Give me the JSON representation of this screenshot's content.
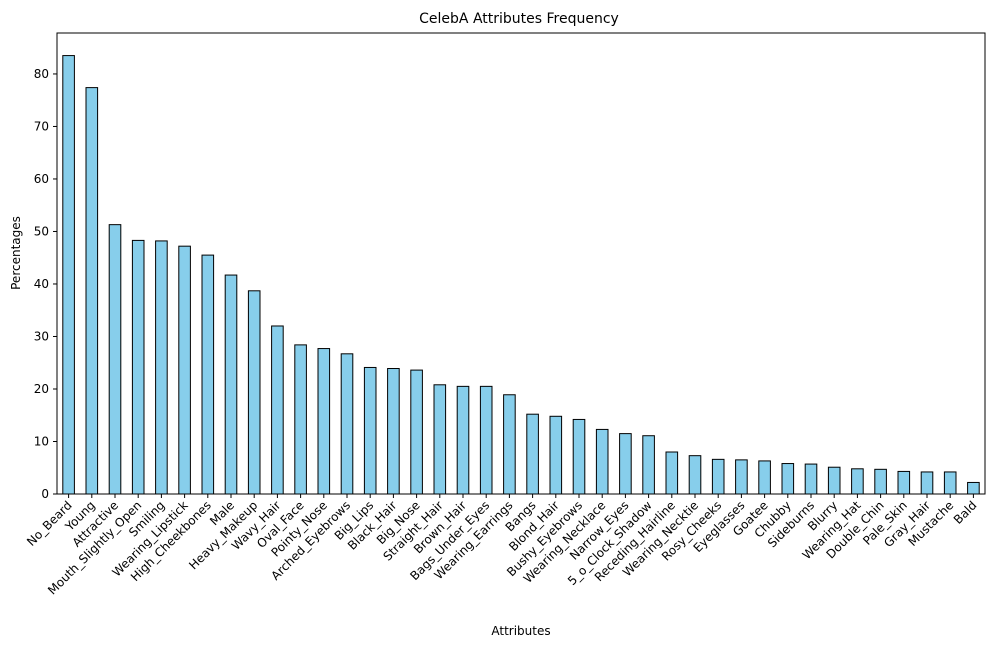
{
  "chart_data": {
    "type": "bar",
    "title": "CelebA Attributes Frequency",
    "xlabel": "Attributes",
    "ylabel": "Percentages",
    "ylim": [
      0,
      87.8
    ],
    "yticks": [
      0,
      10,
      20,
      30,
      40,
      50,
      60,
      70,
      80
    ],
    "grid": false,
    "legend": "none",
    "bar_color": "#87ceeb",
    "edge_color": "#000000",
    "categories": [
      "No_Beard",
      "Young",
      "Attractive",
      "Mouth_Slightly_Open",
      "Smiling",
      "Wearing_Lipstick",
      "High_Cheekbones",
      "Male",
      "Heavy_Makeup",
      "Wavy_Hair",
      "Oval_Face",
      "Pointy_Nose",
      "Arched_Eyebrows",
      "Big_Lips",
      "Black_Hair",
      "Big_Nose",
      "Straight_Hair",
      "Brown_Hair",
      "Bags_Under_Eyes",
      "Wearing_Earrings",
      "Bangs",
      "Blond_Hair",
      "Bushy_Eyebrows",
      "Wearing_Necklace",
      "Narrow_Eyes",
      "5_o_Clock_Shadow",
      "Receding_Hairline",
      "Wearing_Necktie",
      "Rosy_Cheeks",
      "Eyeglasses",
      "Goatee",
      "Chubby",
      "Sideburns",
      "Blurry",
      "Wearing_Hat",
      "Double_Chin",
      "Pale_Skin",
      "Gray_Hair",
      "Mustache",
      "Bald"
    ],
    "values": [
      83.5,
      77.4,
      51.3,
      48.3,
      48.2,
      47.2,
      45.5,
      41.7,
      38.7,
      32.0,
      28.4,
      27.7,
      26.7,
      24.1,
      23.9,
      23.6,
      20.8,
      20.5,
      20.5,
      18.9,
      15.2,
      14.8,
      14.2,
      12.3,
      11.5,
      11.1,
      8.0,
      7.3,
      6.6,
      6.5,
      6.3,
      5.8,
      5.7,
      5.1,
      4.8,
      4.7,
      4.3,
      4.2,
      4.2,
      2.2
    ]
  }
}
